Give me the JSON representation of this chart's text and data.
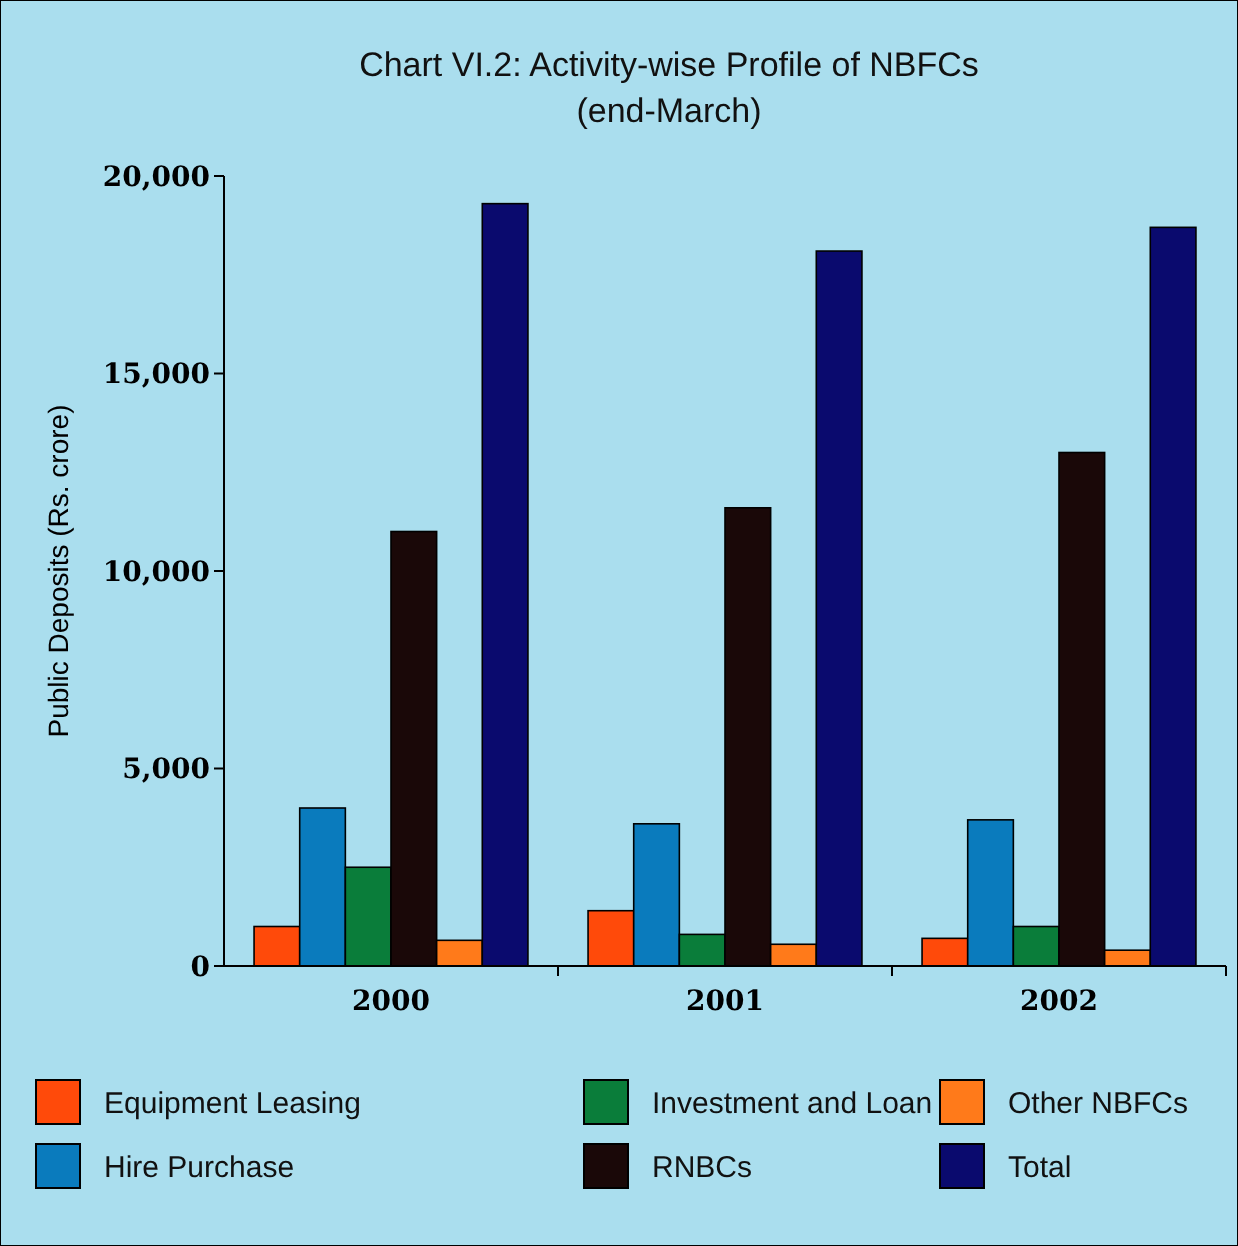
{
  "chart_data": {
    "type": "bar",
    "title": "Chart VI.2: Activity-wise Profile of NBFCs",
    "subtitle": "(end-March)",
    "ylabel": "Public Deposits (Rs. crore)",
    "categories": [
      "2000",
      "2001",
      "2002"
    ],
    "series": [
      {
        "name": "Equipment Leasing",
        "color": "#ff4a0a",
        "values": [
          1000,
          1400,
          700
        ]
      },
      {
        "name": "Hire Purchase",
        "color": "#0a7bbd",
        "values": [
          4000,
          3600,
          3700
        ]
      },
      {
        "name": "Investment and Loan",
        "color": "#0a7d3a",
        "values": [
          2500,
          800,
          1000
        ]
      },
      {
        "name": "RNBCs",
        "color": "#1a0808",
        "values": [
          11000,
          11600,
          13000
        ]
      },
      {
        "name": "Other NBFCs",
        "color": "#ff7a1a",
        "values": [
          650,
          550,
          400
        ]
      },
      {
        "name": "Total",
        "color": "#0a0a6e",
        "values": [
          19300,
          18100,
          18700
        ]
      }
    ],
    "ylim": [
      0,
      20000
    ],
    "yticks": [
      {
        "value": 0,
        "label": "0"
      },
      {
        "value": 5000,
        "label": "5,000"
      },
      {
        "value": 10000,
        "label": "10,000"
      },
      {
        "value": 15000,
        "label": "15,000"
      },
      {
        "value": 20000,
        "label": "20,000"
      }
    ],
    "grid": false,
    "legend": "bottom"
  }
}
